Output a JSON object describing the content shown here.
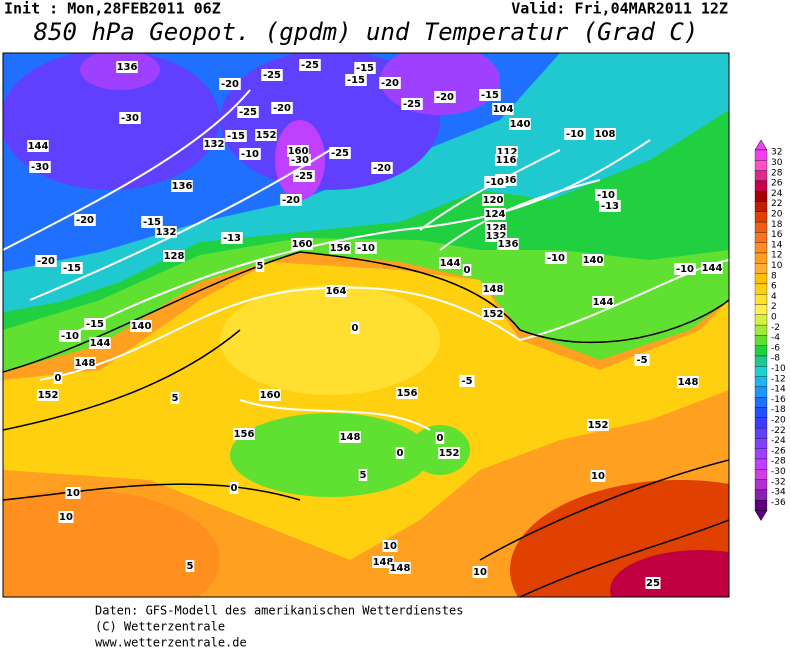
{
  "header": {
    "init": "Init : Mon,28FEB2011 06Z",
    "valid": "Valid: Fri,04MAR2011 12Z",
    "title": "850 hPa Geopot. (gpdm) und Temperatur (Grad C)"
  },
  "map": {
    "labels": [
      136,
      -30,
      -20,
      -25,
      -25,
      -15,
      -20,
      -20,
      -25,
      -25,
      -20,
      -15,
      104,
      140,
      144,
      -30,
      132,
      -15,
      152,
      -10,
      160,
      -30,
      -25,
      -15,
      -10,
      108,
      112,
      116,
      136,
      -20,
      136,
      -20,
      -15,
      -10,
      120,
      124,
      128,
      132,
      -10,
      -13,
      -25,
      -20,
      132,
      -13,
      160,
      156,
      -10,
      136,
      144,
      -10,
      140,
      -10,
      144,
      -20,
      -15,
      128,
      5,
      0,
      164,
      148,
      152,
      144,
      -15,
      -10,
      140,
      144,
      0,
      148,
      -5,
      148,
      0,
      152,
      160,
      156,
      -5,
      5,
      156,
      148,
      152,
      0,
      152,
      10,
      10,
      10,
      148,
      148,
      5,
      10,
      25,
      0,
      0,
      5,
      10
    ]
  },
  "colorbar": {
    "ticks": [
      32,
      30,
      28,
      26,
      24,
      22,
      20,
      18,
      16,
      14,
      12,
      10,
      8,
      6,
      4,
      2,
      0,
      -2,
      -4,
      -6,
      -8,
      -10,
      -12,
      -14,
      -16,
      -18,
      -20,
      -22,
      -24,
      -26,
      -28,
      -30,
      -32,
      -34,
      -36
    ],
    "colors": [
      "#f040f0",
      "#ff50c8",
      "#e02888",
      "#c80048",
      "#a80000",
      "#c02000",
      "#e04000",
      "#f06010",
      "#ff7020",
      "#ff8c20",
      "#ffa020",
      "#ffb030",
      "#ffc000",
      "#ffd010",
      "#ffe030",
      "#fff050",
      "#d8f040",
      "#a0ea38",
      "#60e030",
      "#20d040",
      "#20c890",
      "#20d0d0",
      "#20b4f0",
      "#2094ff",
      "#2070ff",
      "#2050ff",
      "#3c3cff",
      "#6040ff",
      "#8040ff",
      "#a040ff",
      "#c040ff",
      "#d040e0",
      "#b030d0",
      "#8820b0",
      "#600080"
    ]
  },
  "footer": [
    "Daten: GFS-Modell des amerikanischen Wetterdienstes",
    "(C) Wetterzentrale",
    "www.wetterzentrale.de"
  ]
}
